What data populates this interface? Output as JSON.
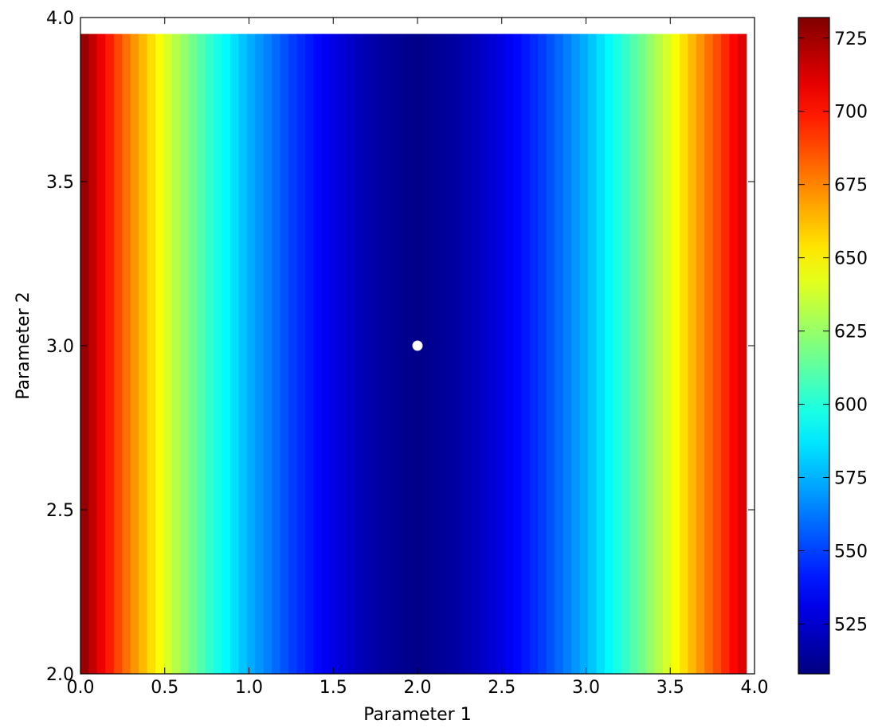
{
  "chart_data": {
    "type": "heatmap",
    "title": "",
    "xlabel": "Parameter 1",
    "ylabel": "Parameter 2",
    "xlim": [
      0.0,
      4.0
    ],
    "ylim": [
      2.0,
      4.0
    ],
    "data_extent": {
      "x": [
        0.0,
        3.95
      ],
      "y": [
        2.0,
        3.95
      ]
    },
    "x_ticks": [
      0.0,
      0.5,
      1.0,
      1.5,
      2.0,
      2.5,
      3.0,
      3.5,
      4.0
    ],
    "y_ticks": [
      2.0,
      2.5,
      3.0,
      3.5,
      4.0
    ],
    "x_tick_labels": [
      "0.0",
      "0.5",
      "1.0",
      "1.5",
      "2.0",
      "2.5",
      "3.0",
      "3.5",
      "4.0"
    ],
    "y_tick_labels": [
      "2.0",
      "2.5",
      "3.0",
      "3.5",
      "4.0"
    ],
    "surface": {
      "description": "value depends only on Parameter 1; minimum near x = 2.0",
      "x": [
        0.0,
        0.25,
        0.5,
        0.75,
        1.0,
        1.25,
        1.5,
        1.75,
        2.0,
        2.25,
        2.5,
        2.75,
        3.0,
        3.25,
        3.5,
        3.75,
        3.95
      ],
      "z": [
        732,
        683,
        642,
        605,
        575,
        550,
        530,
        516,
        510,
        516,
        530,
        550,
        575,
        605,
        642,
        683,
        715
      ]
    },
    "marker": {
      "x": 2.0,
      "y": 3.0,
      "color": "#ffffff"
    },
    "colorbar": {
      "colormap": "jet",
      "range": [
        508,
        732
      ],
      "ticks": [
        525,
        550,
        575,
        600,
        625,
        650,
        675,
        700,
        725
      ],
      "tick_labels": [
        "525",
        "550",
        "575",
        "600",
        "625",
        "650",
        "675",
        "700",
        "725"
      ]
    },
    "grid": false
  }
}
